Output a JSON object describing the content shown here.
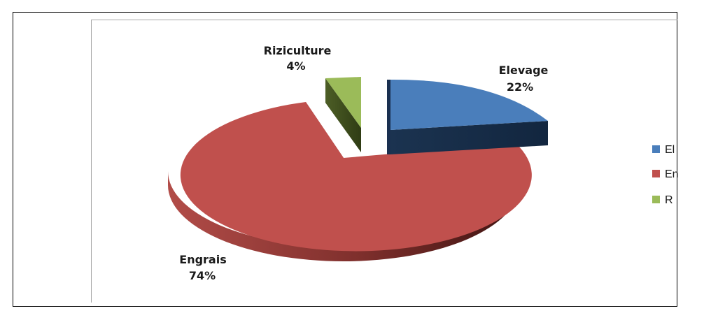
{
  "chart_data": {
    "type": "pie",
    "style": "3d-exploded",
    "categories": [
      "Elevage",
      "Engrais",
      "Riziculture"
    ],
    "values": [
      22,
      74,
      4
    ],
    "labels": [
      "22%",
      "74%",
      "4%"
    ],
    "colors": [
      "#4a7ebb",
      "#c0504d",
      "#9bbb59"
    ],
    "legend": {
      "placement": "right",
      "entries": [
        "El",
        "En",
        "R"
      ]
    }
  }
}
